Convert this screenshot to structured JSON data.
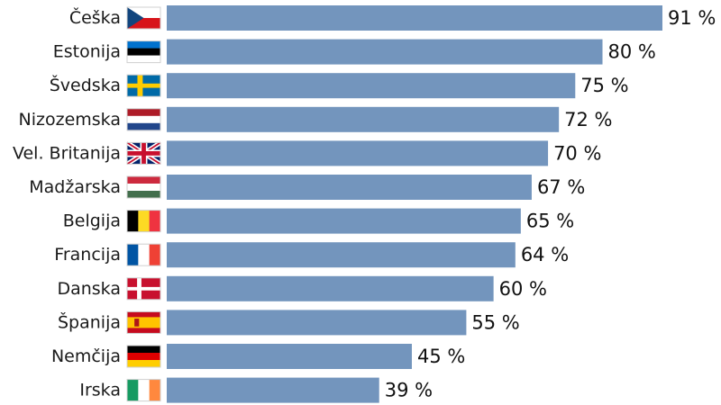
{
  "chart_data": {
    "type": "bar",
    "orientation": "horizontal",
    "unit": "%",
    "categories": [
      "Češka",
      "Estonija",
      "Švedska",
      "Nizozemska",
      "Vel. Britanija",
      "Madžarska",
      "Belgija",
      "Francija",
      "Danska",
      "Španija",
      "Nemčija",
      "Irska"
    ],
    "values": [
      91,
      80,
      75,
      72,
      70,
      67,
      65,
      64,
      60,
      55,
      45,
      39
    ],
    "value_labels": [
      "91 %",
      "80 %",
      "75 %",
      "72 %",
      "70 %",
      "67 %",
      "65 %",
      "64 %",
      "60 %",
      "55 %",
      "45 %",
      "39 %"
    ],
    "flags": [
      "czech-republic-flag",
      "estonia-flag",
      "sweden-flag",
      "netherlands-flag",
      "united-kingdom-flag",
      "hungary-flag",
      "belgium-flag",
      "france-flag",
      "denmark-flag",
      "spain-flag",
      "germany-flag",
      "ireland-flag"
    ],
    "bar_color": "#7395bd",
    "xlim": [
      0,
      91
    ],
    "grid": false,
    "legend": "none",
    "title": "",
    "xlabel": "",
    "ylabel": ""
  }
}
